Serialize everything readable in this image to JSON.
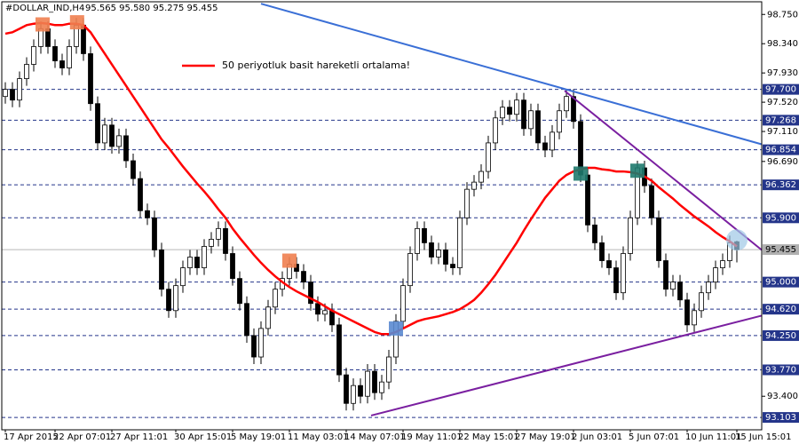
{
  "chart_data": {
    "type": "candlestick",
    "title": "#DOLLAR_IND,H4",
    "ohlc_label": "95.565 95.580 95.275 95.455",
    "up_color": "#ffffff",
    "down_color": "#000000",
    "categories": [
      "17 Apr 2015",
      null,
      null,
      null,
      null,
      null,
      null,
      "22 Apr 07:01",
      null,
      null,
      null,
      null,
      null,
      null,
      null,
      "27 Apr 11:01",
      null,
      null,
      null,
      null,
      null,
      null,
      null,
      null,
      "30 Apr 15:01",
      null,
      null,
      null,
      null,
      null,
      null,
      null,
      "5 May 19:01",
      null,
      null,
      null,
      null,
      null,
      null,
      null,
      "11 May 03:01",
      null,
      null,
      null,
      null,
      null,
      null,
      null,
      "14 May 07:01",
      null,
      null,
      null,
      null,
      null,
      null,
      null,
      "19 May 11:01",
      null,
      null,
      null,
      null,
      null,
      null,
      null,
      "22 May 15:01",
      null,
      null,
      null,
      null,
      null,
      null,
      null,
      "27 May 19:01",
      null,
      null,
      null,
      null,
      null,
      null,
      null,
      "2 Jun 03:01",
      null,
      null,
      null,
      null,
      null,
      null,
      null,
      "5 Jun 07:01",
      null,
      null,
      null,
      null,
      null,
      null,
      null,
      "10 Jun 11:01",
      null,
      null,
      null,
      null,
      null,
      null,
      "15 Jun 15:01"
    ],
    "open": [
      97.6,
      97.7,
      97.55,
      97.85,
      98.05,
      98.3,
      98.55,
      98.3,
      98.1,
      98.0,
      98.3,
      98.6,
      98.2,
      97.5,
      96.95,
      97.2,
      96.9,
      97.05,
      96.7,
      96.45,
      96.0,
      95.9,
      95.45,
      94.9,
      94.6,
      94.95,
      95.2,
      95.35,
      95.2,
      95.5,
      95.6,
      95.75,
      95.4,
      95.05,
      94.7,
      94.25,
      93.95,
      94.35,
      94.65,
      94.9,
      95.05,
      95.25,
      95.15,
      95.0,
      94.7,
      94.55,
      94.6,
      94.4,
      93.7,
      93.3,
      93.55,
      93.4,
      93.75,
      93.45,
      93.6,
      93.95,
      94.45,
      94.95,
      95.4,
      95.75,
      95.55,
      95.35,
      95.45,
      95.25,
      95.2,
      95.9,
      96.3,
      96.4,
      96.55,
      96.95,
      97.3,
      97.45,
      97.35,
      97.55,
      97.15,
      97.4,
      96.95,
      96.85,
      97.1,
      97.4,
      97.6,
      97.25,
      96.5,
      95.8,
      95.55,
      95.3,
      95.2,
      94.85,
      95.4,
      95.9,
      96.6,
      96.35,
      95.9,
      95.3,
      94.9,
      95.0,
      94.75,
      94.4,
      94.6,
      94.85,
      95.0,
      95.2,
      95.3,
      95.565
    ],
    "high": [
      97.8,
      97.8,
      97.95,
      98.15,
      98.4,
      98.65,
      98.65,
      98.4,
      98.2,
      98.4,
      98.7,
      98.7,
      98.3,
      97.6,
      97.3,
      97.3,
      97.15,
      97.15,
      96.8,
      96.55,
      96.1,
      96.0,
      95.55,
      95.0,
      95.05,
      95.3,
      95.45,
      95.45,
      95.6,
      95.7,
      95.85,
      95.85,
      95.5,
      95.15,
      94.8,
      94.35,
      94.45,
      94.75,
      95.0,
      95.15,
      95.35,
      95.35,
      95.25,
      95.1,
      94.8,
      94.7,
      94.7,
      94.5,
      93.8,
      93.65,
      93.65,
      93.85,
      93.85,
      93.7,
      94.05,
      94.55,
      95.05,
      95.5,
      95.85,
      95.85,
      95.65,
      95.55,
      95.55,
      95.35,
      96.0,
      96.4,
      96.5,
      96.65,
      97.05,
      97.4,
      97.55,
      97.55,
      97.65,
      97.65,
      97.5,
      97.5,
      97.05,
      97.2,
      97.5,
      97.7,
      97.7,
      97.35,
      96.6,
      95.9,
      95.65,
      95.4,
      95.3,
      95.5,
      96.0,
      96.7,
      96.7,
      96.45,
      96.0,
      95.4,
      95.1,
      95.1,
      94.85,
      94.7,
      94.95,
      95.1,
      95.3,
      95.4,
      95.65,
      95.58
    ],
    "low": [
      97.5,
      97.45,
      97.45,
      97.75,
      97.95,
      98.2,
      98.2,
      98.0,
      97.9,
      97.9,
      98.2,
      98.1,
      97.4,
      96.85,
      96.85,
      96.8,
      96.8,
      96.6,
      96.35,
      95.9,
      95.8,
      95.35,
      94.8,
      94.5,
      94.5,
      94.85,
      95.1,
      95.1,
      95.1,
      95.4,
      95.5,
      95.3,
      94.95,
      94.6,
      94.15,
      93.85,
      93.85,
      94.25,
      94.55,
      94.8,
      94.95,
      95.05,
      94.9,
      94.6,
      94.45,
      94.45,
      94.3,
      93.6,
      93.2,
      93.2,
      93.3,
      93.3,
      93.35,
      93.35,
      93.5,
      93.85,
      94.35,
      94.85,
      95.3,
      95.45,
      95.25,
      95.25,
      95.15,
      95.1,
      95.1,
      95.8,
      96.2,
      96.3,
      96.45,
      96.85,
      97.2,
      97.25,
      97.25,
      97.05,
      97.05,
      96.85,
      96.75,
      96.75,
      97.0,
      97.3,
      97.15,
      96.4,
      95.7,
      95.45,
      95.2,
      95.1,
      94.75,
      94.75,
      95.3,
      95.8,
      96.25,
      95.8,
      95.2,
      94.8,
      94.8,
      94.65,
      94.3,
      94.3,
      94.5,
      94.75,
      94.9,
      95.1,
      95.2,
      95.275
    ],
    "close": [
      97.7,
      97.55,
      97.85,
      98.05,
      98.3,
      98.55,
      98.3,
      98.1,
      98.0,
      98.3,
      98.6,
      98.2,
      97.5,
      96.95,
      97.2,
      96.9,
      97.05,
      96.7,
      96.45,
      96.0,
      95.9,
      95.45,
      94.9,
      94.6,
      94.95,
      95.2,
      95.35,
      95.2,
      95.5,
      95.6,
      95.75,
      95.4,
      95.05,
      94.7,
      94.25,
      93.95,
      94.35,
      94.65,
      94.9,
      95.05,
      95.25,
      95.15,
      95.0,
      94.7,
      94.55,
      94.6,
      94.4,
      93.7,
      93.3,
      93.55,
      93.4,
      93.75,
      93.45,
      93.6,
      93.95,
      94.45,
      94.95,
      95.4,
      95.75,
      95.55,
      95.35,
      95.45,
      95.25,
      95.2,
      95.9,
      96.3,
      96.4,
      96.55,
      96.95,
      97.3,
      97.45,
      97.35,
      97.55,
      97.15,
      97.4,
      96.95,
      96.85,
      97.1,
      97.4,
      97.6,
      97.25,
      96.5,
      95.8,
      95.55,
      95.3,
      95.2,
      94.85,
      95.4,
      95.9,
      96.6,
      96.35,
      95.9,
      95.3,
      94.9,
      95.0,
      94.75,
      94.4,
      94.6,
      94.85,
      95.0,
      95.2,
      95.3,
      95.55,
      95.455
    ],
    "ma": {
      "name": "50 periyotluk basit hareketli ortalama!",
      "color": "#ff0000",
      "values": [
        98.48,
        98.5,
        98.55,
        98.6,
        98.62,
        98.63,
        98.62,
        98.6,
        98.6,
        98.62,
        98.62,
        98.6,
        98.5,
        98.35,
        98.2,
        98.05,
        97.9,
        97.75,
        97.6,
        97.45,
        97.3,
        97.15,
        97.0,
        96.88,
        96.75,
        96.62,
        96.5,
        96.38,
        96.27,
        96.15,
        96.02,
        95.9,
        95.75,
        95.62,
        95.5,
        95.38,
        95.27,
        95.17,
        95.08,
        95.0,
        94.93,
        94.87,
        94.82,
        94.77,
        94.72,
        94.66,
        94.6,
        94.55,
        94.5,
        94.45,
        94.4,
        94.35,
        94.3,
        94.27,
        94.27,
        94.3,
        94.35,
        94.4,
        94.45,
        94.48,
        94.5,
        94.52,
        94.55,
        94.58,
        94.62,
        94.68,
        94.75,
        94.85,
        94.97,
        95.1,
        95.25,
        95.4,
        95.55,
        95.72,
        95.88,
        96.03,
        96.18,
        96.3,
        96.42,
        96.5,
        96.55,
        96.58,
        96.6,
        96.6,
        96.58,
        96.57,
        96.55,
        96.55,
        96.54,
        96.52,
        96.48,
        96.42,
        96.33,
        96.25,
        96.17,
        96.08,
        96.0,
        95.92,
        95.85,
        95.78,
        95.7,
        95.63,
        95.57,
        95.5
      ]
    },
    "ylim": [
      92.93,
      98.89
    ],
    "yticks": [
      {
        "value": 98.75,
        "label": "98.750"
      },
      {
        "value": 98.34,
        "label": "98.340"
      },
      {
        "value": 97.93,
        "label": "97.930"
      },
      {
        "value": 97.52,
        "label": "97.520"
      },
      {
        "value": 97.11,
        "label": "97.110"
      },
      {
        "value": 96.69,
        "label": "96.690"
      },
      {
        "value": 93.4,
        "label": "93.400"
      }
    ],
    "levels": [
      {
        "value": 97.7,
        "label": "97.700"
      },
      {
        "value": 97.268,
        "label": "97.268"
      },
      {
        "value": 96.854,
        "label": "96.854"
      },
      {
        "value": 96.362,
        "label": "96.362"
      },
      {
        "value": 95.9,
        "label": "95.900"
      },
      {
        "value": 95.0,
        "label": "95.000"
      },
      {
        "value": 94.62,
        "label": "94.620"
      },
      {
        "value": 94.25,
        "label": "94.250"
      },
      {
        "value": 93.77,
        "label": "93.770"
      },
      {
        "value": 93.103,
        "label": "93.103"
      }
    ],
    "level_color": "#24358a",
    "current_price": {
      "value": 95.455,
      "label": "95.455"
    },
    "trendlines": [
      {
        "color": "#3a6fd6",
        "start_index": 36,
        "start_price": 98.9,
        "end_index": 106.5,
        "end_price": 96.93
      },
      {
        "color": "#7a1fa0",
        "start_index": 78.75,
        "start_price": 97.68,
        "end_index": 106.5,
        "end_price": 95.45
      },
      {
        "color": "#7a1fa0",
        "start_index": 51.5,
        "start_price": 93.13,
        "end_index": 106.5,
        "end_price": 94.53
      }
    ],
    "markers": [
      {
        "index": 5.25,
        "price": 98.61,
        "color": "#f08050",
        "shape": "square"
      },
      {
        "index": 10.1,
        "price": 98.64,
        "color": "#f08050",
        "shape": "square"
      },
      {
        "index": 40,
        "price": 95.3,
        "color": "#f08050",
        "shape": "square"
      },
      {
        "index": 55,
        "price": 94.35,
        "color": "#5a8ad0",
        "shape": "square"
      },
      {
        "index": 81,
        "price": 96.52,
        "color": "#1f7a6e",
        "shape": "square"
      },
      {
        "index": 89,
        "price": 96.56,
        "color": "#1f7a6e",
        "shape": "square"
      },
      {
        "index": 103,
        "price": 95.59,
        "color": "#9ec8e6",
        "shape": "circle"
      }
    ]
  }
}
